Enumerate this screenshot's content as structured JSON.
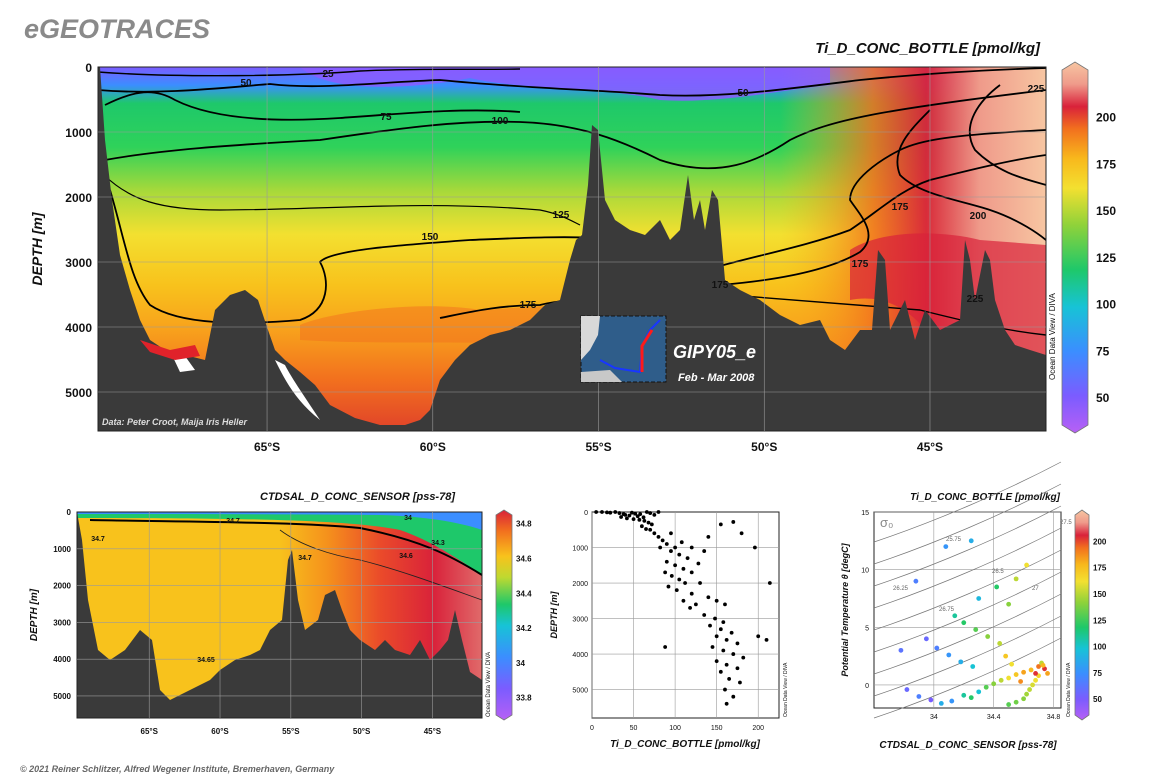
{
  "brand": "eGEOTRACES",
  "copyright": "© 2021 Reiner Schlitzer, Alfred Wegener Institute, Bremerhaven, Germany",
  "odv_credit": "Ocean Data View / DIVA",
  "main": {
    "title": "Ti_D_CONC_BOTTLE [pmol/kg]",
    "data_credit": "Data: Peter Croot, Maija Iris Heller",
    "cruise": "GIPY05_e",
    "period": "Feb - Mar 2008"
  },
  "colors": {
    "bathymetry": "#3a3a3a",
    "contour": "#000000",
    "grid": "#9a9a9a"
  },
  "chart_data": [
    {
      "type": "heatmap",
      "name": "section-ti",
      "title": "Ti_D_CONC_BOTTLE [pmol/kg]",
      "ylabel": "DEPTH [m]",
      "xlabel": "",
      "x_ticks": [
        "65°S",
        "60°S",
        "55°S",
        "50°S",
        "45°S"
      ],
      "x_tick_values": [
        65,
        60,
        55,
        50,
        45
      ],
      "xlim": [
        70.1,
        41.5
      ],
      "y_ticks": [
        "0",
        "1000",
        "2000",
        "3000",
        "4000",
        "5000"
      ],
      "y_tick_values": [
        0,
        1000,
        2000,
        3000,
        4000,
        5000
      ],
      "ylim": [
        0,
        5600
      ],
      "colorbar": {
        "ticks": [
          "50",
          "75",
          "100",
          "125",
          "150",
          "175",
          "200"
        ],
        "values": [
          50,
          75,
          100,
          125,
          150,
          175,
          200
        ],
        "range": [
          35,
          225
        ]
      },
      "contour_labels": [
        "25",
        "50",
        "50",
        "75",
        "100",
        "125",
        "150",
        "175",
        "175",
        "175",
        "175",
        "200",
        "225",
        "225"
      ],
      "contour_label_values": [
        25,
        50,
        50,
        75,
        100,
        125,
        150,
        175,
        175,
        175,
        175,
        200,
        225,
        225
      ]
    },
    {
      "type": "heatmap",
      "name": "section-sal",
      "title": "CTDSAL_D_CONC_SENSOR [pss-78]",
      "ylabel": "DEPTH [m]",
      "x_ticks": [
        "65°S",
        "60°S",
        "55°S",
        "50°S",
        "45°S"
      ],
      "x_tick_values": [
        65,
        60,
        55,
        50,
        45
      ],
      "xlim": [
        70.1,
        41.5
      ],
      "y_ticks": [
        "0",
        "1000",
        "2000",
        "3000",
        "4000",
        "5000"
      ],
      "y_tick_values": [
        0,
        1000,
        2000,
        3000,
        4000,
        5000
      ],
      "ylim": [
        0,
        5600
      ],
      "colorbar": {
        "ticks": [
          "34.8",
          "34.6",
          "34.4",
          "34.2",
          "34",
          "33.8"
        ],
        "values": [
          34.8,
          34.6,
          34.4,
          34.2,
          34.0,
          33.8
        ],
        "range": [
          33.7,
          34.85
        ]
      },
      "contour_labels": [
        "34.7",
        "34.7",
        "34.7",
        "34.6",
        "34.3",
        "34",
        "34.65"
      ]
    },
    {
      "type": "scatter",
      "name": "profile-ti",
      "xlabel": "Ti_D_CONC_BOTTLE [pmol/kg]",
      "ylabel": "DEPTH [m]",
      "x_ticks": [
        "0",
        "50",
        "100",
        "150",
        "200"
      ],
      "x_tick_values": [
        0,
        50,
        100,
        150,
        200
      ],
      "xlim": [
        0,
        225
      ],
      "y_ticks": [
        "0",
        "1000",
        "2000",
        "3000",
        "4000",
        "5000"
      ],
      "y_tick_values": [
        0,
        1000,
        2000,
        3000,
        4000,
        5000
      ],
      "ylim": [
        0,
        5800
      ],
      "points": [
        [
          5,
          0
        ],
        [
          12,
          0
        ],
        [
          18,
          10
        ],
        [
          22,
          20
        ],
        [
          28,
          0
        ],
        [
          33,
          30
        ],
        [
          38,
          60
        ],
        [
          40,
          80
        ],
        [
          45,
          100
        ],
        [
          48,
          20
        ],
        [
          52,
          50
        ],
        [
          55,
          120
        ],
        [
          58,
          60
        ],
        [
          62,
          150
        ],
        [
          66,
          0
        ],
        [
          70,
          30
        ],
        [
          75,
          80
        ],
        [
          80,
          0
        ],
        [
          35,
          140
        ],
        [
          42,
          180
        ],
        [
          50,
          200
        ],
        [
          57,
          220
        ],
        [
          63,
          250
        ],
        [
          68,
          300
        ],
        [
          72,
          350
        ],
        [
          60,
          400
        ],
        [
          65,
          480
        ],
        [
          70,
          500
        ],
        [
          75,
          600
        ],
        [
          80,
          700
        ],
        [
          85,
          800
        ],
        [
          90,
          900
        ],
        [
          100,
          1000
        ],
        [
          82,
          1000
        ],
        [
          95,
          1100
        ],
        [
          105,
          1200
        ],
        [
          115,
          1300
        ],
        [
          90,
          1400
        ],
        [
          100,
          1500
        ],
        [
          110,
          1600
        ],
        [
          120,
          1700
        ],
        [
          88,
          1700
        ],
        [
          96,
          1800
        ],
        [
          105,
          1900
        ],
        [
          112,
          2000
        ],
        [
          130,
          2000
        ],
        [
          92,
          2100
        ],
        [
          102,
          2200
        ],
        [
          120,
          2300
        ],
        [
          140,
          2400
        ],
        [
          110,
          2500
        ],
        [
          125,
          2600
        ],
        [
          150,
          2500
        ],
        [
          160,
          2600
        ],
        [
          118,
          2700
        ],
        [
          135,
          2900
        ],
        [
          148,
          3000
        ],
        [
          158,
          3100
        ],
        [
          142,
          3200
        ],
        [
          155,
          3300
        ],
        [
          168,
          3400
        ],
        [
          150,
          3500
        ],
        [
          162,
          3600
        ],
        [
          175,
          3700
        ],
        [
          145,
          3800
        ],
        [
          158,
          3900
        ],
        [
          170,
          4000
        ],
        [
          182,
          4100
        ],
        [
          150,
          4200
        ],
        [
          162,
          4300
        ],
        [
          175,
          4400
        ],
        [
          155,
          4500
        ],
        [
          165,
          4700
        ],
        [
          178,
          4800
        ],
        [
          160,
          5000
        ],
        [
          170,
          5200
        ],
        [
          162,
          5400
        ],
        [
          88,
          3800
        ],
        [
          120,
          1000
        ],
        [
          135,
          1100
        ],
        [
          140,
          700
        ],
        [
          155,
          350
        ],
        [
          170,
          280
        ],
        [
          180,
          600
        ],
        [
          196,
          1000
        ],
        [
          214,
          2000
        ],
        [
          200,
          3500
        ],
        [
          210,
          3600
        ],
        [
          95,
          600
        ],
        [
          108,
          850
        ],
        [
          128,
          1450
        ]
      ]
    },
    {
      "type": "scatter",
      "name": "ts-diagram",
      "title": "Ti_D_CONC_BOTTLE [pmol/kg]",
      "xlabel": "CTDSAL_D_CONC_SENSOR [pss-78]",
      "ylabel": "Potential Temperature θ [degC]",
      "sigma_label": "σ₀",
      "x_ticks": [
        "34",
        "34.4",
        "34.8"
      ],
      "x_tick_values": [
        34.0,
        34.4,
        34.8
      ],
      "xlim": [
        33.6,
        34.85
      ],
      "y_ticks": [
        "0",
        "5",
        "10",
        "15"
      ],
      "y_tick_values": [
        0,
        5,
        10,
        15
      ],
      "ylim": [
        -2,
        15
      ],
      "isopycnal_labels": [
        "25.75",
        "26.25",
        "26.75",
        "26.5",
        "27",
        "27.5"
      ],
      "colorbar": {
        "ticks": [
          "200",
          "175",
          "150",
          "125",
          "100",
          "75",
          "50"
        ],
        "values": [
          200,
          175,
          150,
          125,
          100,
          75,
          50
        ],
        "range": [
          35,
          225
        ]
      },
      "points": [
        [
          33.82,
          -0.4,
          60
        ],
        [
          33.9,
          -1.0,
          70
        ],
        [
          33.98,
          -1.3,
          55
        ],
        [
          34.05,
          -1.6,
          90
        ],
        [
          34.12,
          -1.4,
          80
        ],
        [
          34.2,
          -0.9,
          110
        ],
        [
          34.25,
          -1.1,
          120
        ],
        [
          34.3,
          -0.6,
          100
        ],
        [
          34.35,
          -0.2,
          130
        ],
        [
          34.4,
          0.1,
          140
        ],
        [
          34.45,
          0.4,
          150
        ],
        [
          34.5,
          0.6,
          160
        ],
        [
          34.55,
          0.9,
          170
        ],
        [
          34.6,
          1.1,
          180
        ],
        [
          34.65,
          1.3,
          175
        ],
        [
          34.7,
          1.6,
          190
        ],
        [
          34.72,
          1.9,
          150
        ],
        [
          34.74,
          1.4,
          200
        ],
        [
          34.76,
          1.0,
          180
        ],
        [
          34.7,
          0.8,
          165
        ],
        [
          34.68,
          0.4,
          160
        ],
        [
          34.66,
          0.0,
          155
        ],
        [
          34.64,
          -0.4,
          150
        ],
        [
          34.62,
          -0.8,
          145
        ],
        [
          34.6,
          -1.2,
          140
        ],
        [
          34.55,
          -1.5,
          135
        ],
        [
          34.5,
          -1.7,
          130
        ],
        [
          33.95,
          4.0,
          60
        ],
        [
          34.02,
          3.2,
          70
        ],
        [
          34.1,
          2.6,
          80
        ],
        [
          34.18,
          2.0,
          90
        ],
        [
          34.26,
          1.6,
          100
        ],
        [
          34.14,
          6.0,
          110
        ],
        [
          34.2,
          5.4,
          120
        ],
        [
          34.28,
          4.8,
          130
        ],
        [
          34.36,
          4.2,
          140
        ],
        [
          34.44,
          3.6,
          150
        ],
        [
          34.3,
          7.5,
          95
        ],
        [
          34.42,
          8.5,
          120
        ],
        [
          34.5,
          7.0,
          140
        ],
        [
          34.55,
          9.2,
          150
        ],
        [
          34.62,
          10.4,
          160
        ],
        [
          34.25,
          12.5,
          90
        ],
        [
          33.88,
          9.0,
          70
        ],
        [
          34.08,
          12.0,
          80
        ],
        [
          33.78,
          3.0,
          65
        ],
        [
          34.48,
          2.5,
          170
        ],
        [
          34.52,
          1.8,
          160
        ],
        [
          34.58,
          0.3,
          185
        ],
        [
          34.68,
          1.0,
          200
        ],
        [
          34.73,
          1.7,
          175
        ]
      ]
    }
  ]
}
